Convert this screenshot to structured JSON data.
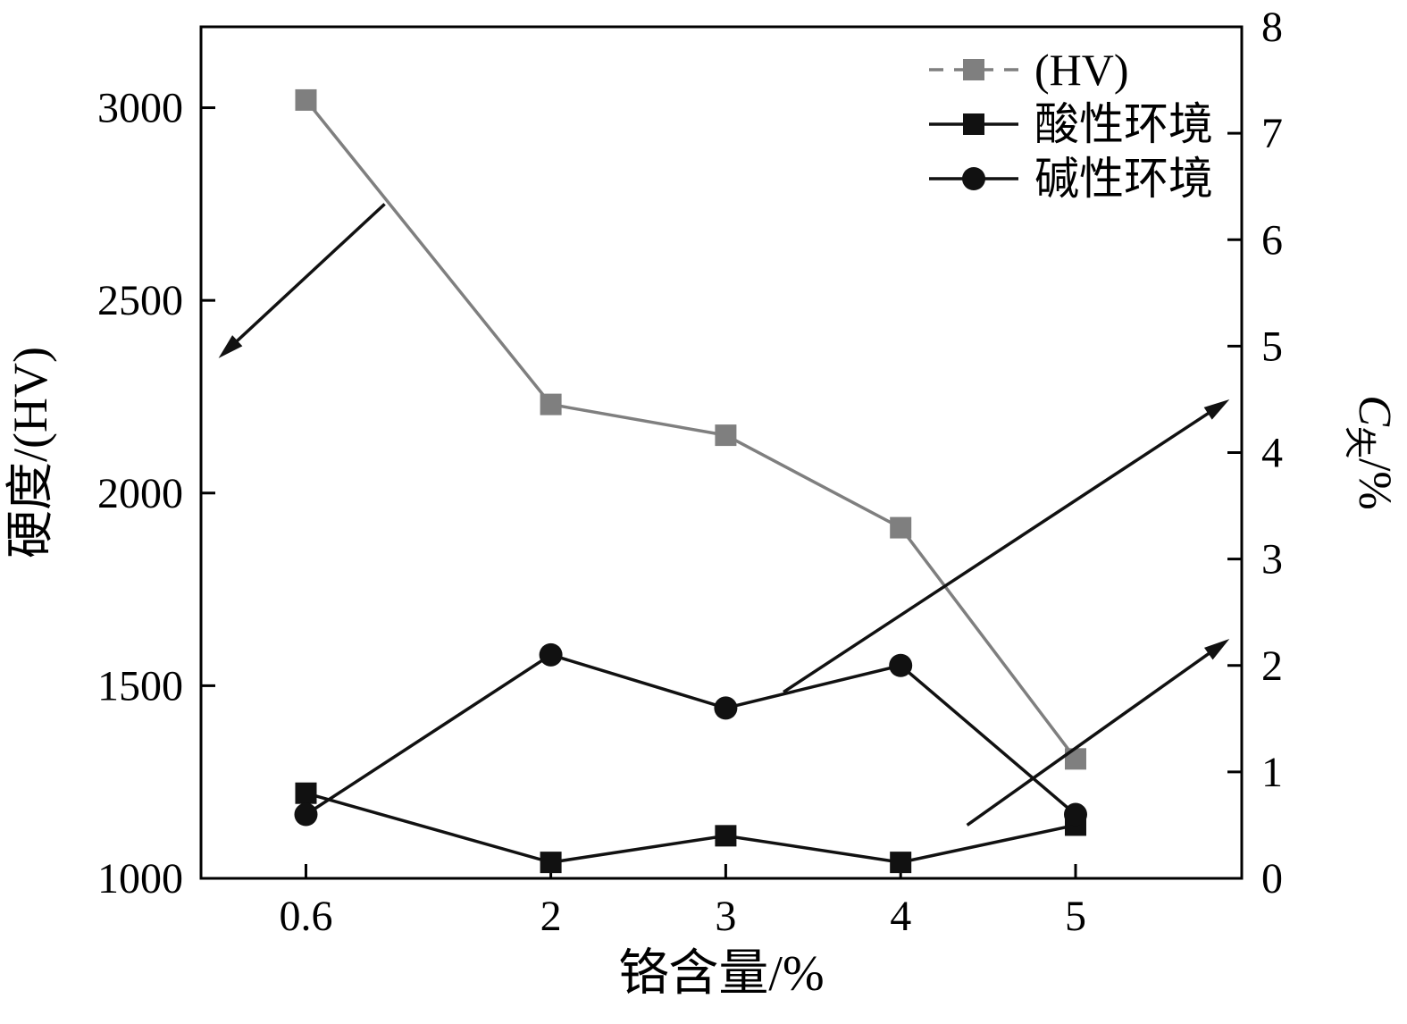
{
  "chart_data": {
    "type": "line",
    "title": "",
    "xlabel": "铬含量/%",
    "ylabel_left": "硬度/(HV)",
    "ylabel_right": "C失/%",
    "ylabel_right_parts": {
      "main": "C",
      "sub": "失",
      "suffix": "/%"
    },
    "x": [
      0.6,
      2,
      3,
      4,
      5
    ],
    "xticks": [
      0.6,
      2,
      3,
      4,
      5
    ],
    "xlim": [
      0,
      5.95
    ],
    "yticks_left": [
      1000,
      1500,
      2000,
      2500,
      3000
    ],
    "ylim_left": [
      1000,
      3210
    ],
    "yticks_right": [
      0,
      1,
      2,
      3,
      4,
      5,
      6,
      7,
      8
    ],
    "ylim_right": [
      0,
      8
    ],
    "grid": false,
    "legend_position": "top-right",
    "colors": {
      "hv_gray": "#7f7f7f",
      "black": "#111111",
      "background": "#ffffff"
    },
    "series": [
      {
        "name": "(HV)",
        "axis": "left",
        "color": "#7f7f7f",
        "marker": "square",
        "legend_dash": true,
        "values": [
          3020,
          2230,
          2150,
          1910,
          1310
        ]
      },
      {
        "name": "酸性环境",
        "axis": "right",
        "color": "#111111",
        "marker": "square",
        "legend_dash": false,
        "values": [
          0.8,
          0.15,
          0.4,
          0.15,
          0.5
        ]
      },
      {
        "name": "碱性环境",
        "axis": "right",
        "color": "#111111",
        "marker": "circle",
        "legend_dash": false,
        "values": [
          0.6,
          2.1,
          1.6,
          2.0,
          0.6
        ]
      }
    ],
    "annotations": {
      "arrows": [
        {
          "axis": "left",
          "from": [
            1.05,
            2750
          ],
          "to": [
            0.1,
            2350
          ]
        },
        {
          "axis": "right",
          "from": [
            3.33,
            1.75
          ],
          "to": [
            5.88,
            4.5
          ]
        },
        {
          "axis": "right",
          "from": [
            4.38,
            0.5
          ],
          "to": [
            5.88,
            2.25
          ]
        }
      ]
    }
  }
}
